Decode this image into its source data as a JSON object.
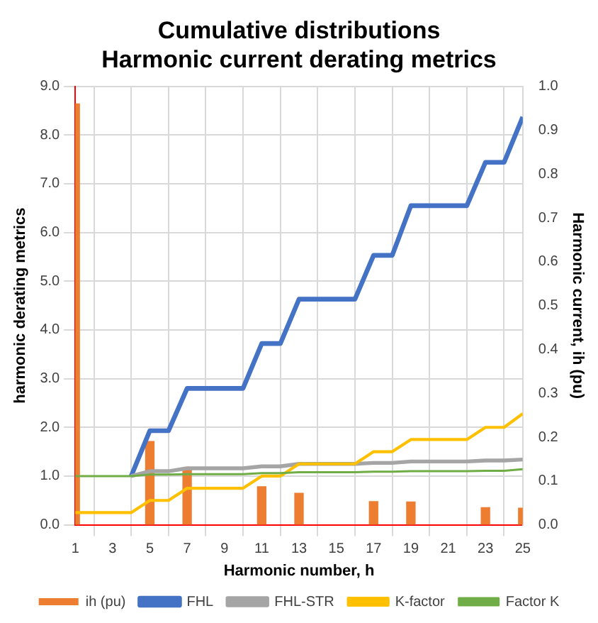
{
  "chart_data": {
    "type": "line",
    "title": "Cumulative distributions\nHarmonic current derating metrics",
    "xlabel": "Harmonic number, h",
    "ylabel": "harmonic derating metrics",
    "y2label": "Harmonic current, ih (pu)",
    "x": [
      1,
      2,
      3,
      4,
      5,
      6,
      7,
      8,
      9,
      10,
      11,
      12,
      13,
      14,
      15,
      16,
      17,
      18,
      19,
      20,
      21,
      22,
      23,
      24,
      25
    ],
    "xlim": [
      1,
      25
    ],
    "xticks": [
      1,
      3,
      5,
      7,
      9,
      11,
      13,
      15,
      17,
      19,
      21,
      23,
      25
    ],
    "ylim": [
      0,
      9
    ],
    "yticks": [
      {
        "value": 0,
        "label": "0.0"
      },
      {
        "value": 1,
        "label": "1.0"
      },
      {
        "value": 2,
        "label": "2.0"
      },
      {
        "value": 3,
        "label": "3.0"
      },
      {
        "value": 4,
        "label": "4.0"
      },
      {
        "value": 5,
        "label": "5.0"
      },
      {
        "value": 6,
        "label": "6.0"
      },
      {
        "value": 7,
        "label": "7.0"
      },
      {
        "value": 8,
        "label": "8.0"
      },
      {
        "value": 9,
        "label": "9.0"
      }
    ],
    "y2lim": [
      0,
      1
    ],
    "y2ticks": [
      {
        "value": 0,
        "label": "0.0"
      },
      0.1,
      0.2,
      0.3,
      0.4,
      0.5,
      0.6,
      0.7,
      0.8,
      0.9,
      {
        "value": 1,
        "label": "1.0"
      }
    ],
    "series": [
      {
        "name": "ih (pu)",
        "type": "bar",
        "axis": "y2",
        "color": "#ed7d31",
        "x": [
          1,
          5,
          7,
          11,
          13,
          17,
          19,
          23,
          25
        ],
        "values": [
          0.96,
          0.19,
          0.13,
          0.087,
          0.072,
          0.053,
          0.052,
          0.039,
          0.038
        ]
      },
      {
        "name": "FHL",
        "color": "#4472c4",
        "values": [
          null,
          null,
          null,
          1,
          1.93,
          1.93,
          2.8,
          2.8,
          2.8,
          2.8,
          3.72,
          3.72,
          4.63,
          4.63,
          4.63,
          4.63,
          5.53,
          5.53,
          6.55,
          6.55,
          6.55,
          6.55,
          7.44,
          7.44,
          8.37
        ]
      },
      {
        "name": "FHL-STR",
        "color": "#a5a5a5",
        "values": [
          null,
          null,
          null,
          1,
          1.1,
          1.1,
          1.16,
          1.16,
          1.16,
          1.16,
          1.2,
          1.2,
          1.25,
          1.25,
          1.25,
          1.25,
          1.27,
          1.27,
          1.3,
          1.3,
          1.3,
          1.3,
          1.32,
          1.32,
          1.34
        ]
      },
      {
        "name": "K-factor",
        "color": "#ffc000",
        "values": [
          0.25,
          0.25,
          0.25,
          0.25,
          0.5,
          0.5,
          0.75,
          0.75,
          0.75,
          0.75,
          1,
          1,
          1.25,
          1.25,
          1.25,
          1.25,
          1.5,
          1.5,
          1.75,
          1.75,
          1.75,
          1.75,
          2,
          2,
          2.28
        ]
      },
      {
        "name": "Factor K",
        "color": "#70ad47",
        "values": [
          1,
          1,
          1,
          1,
          1.03,
          1.03,
          1.04,
          1.04,
          1.04,
          1.04,
          1.06,
          1.06,
          1.08,
          1.08,
          1.08,
          1.08,
          1.09,
          1.09,
          1.1,
          1.1,
          1.1,
          1.1,
          1.11,
          1.11,
          1.14
        ]
      }
    ],
    "grid": true,
    "legend": "bottom",
    "marker": "none",
    "line_style": "solid"
  }
}
